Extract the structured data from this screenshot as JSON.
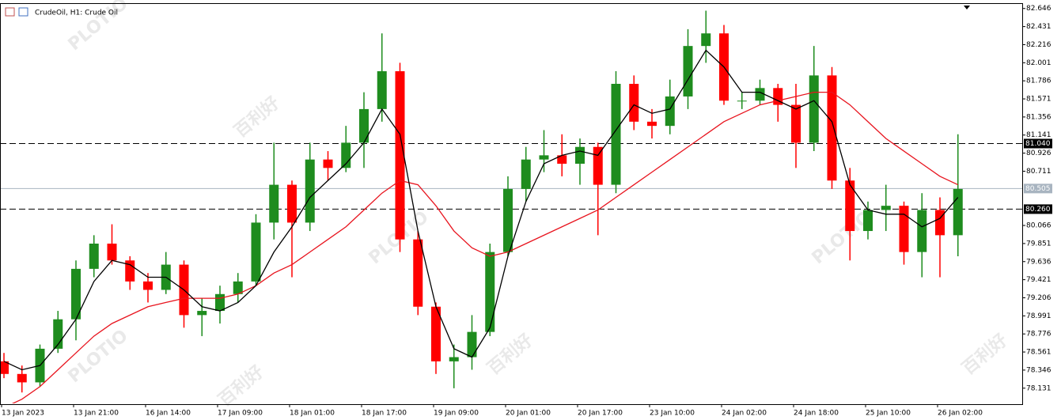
{
  "chart_data": {
    "type": "candlestick",
    "title": "CrudeOil, H1: Crude Oil",
    "watermark": {
      "brand": "PLOTIO",
      "local": "百利好"
    },
    "categories": [
      "13 Jan 2023",
      null,
      null,
      null,
      "13 Jan 21:00",
      null,
      null,
      null,
      "16 Jan 14:00",
      null,
      null,
      null,
      "17 Jan 09:00",
      null,
      null,
      null,
      "18 Jan 01:00",
      null,
      null,
      null,
      "18 Jan 17:00",
      null,
      null,
      null,
      "19 Jan 09:00",
      null,
      null,
      null,
      "20 Jan 01:00",
      null,
      null,
      null,
      "20 Jan 17:00",
      null,
      null,
      null,
      "23 Jan 10:00",
      null,
      null,
      null,
      "24 Jan 02:00",
      null,
      null,
      null,
      "24 Jan 18:00",
      null,
      null,
      null,
      "25 Jan 10:00",
      null,
      null,
      null,
      "26 Jan 02:00",
      null
    ],
    "open": [
      78.45,
      78.3,
      78.2,
      78.6,
      78.95,
      79.55,
      79.85,
      79.65,
      79.4,
      79.3,
      79.6,
      79.0,
      79.05,
      79.25,
      79.4,
      80.1,
      80.55,
      80.1,
      80.85,
      80.75,
      81.05,
      81.45,
      81.9,
      79.9,
      79.1,
      78.45,
      78.5,
      78.8,
      79.75,
      80.5,
      80.85,
      80.9,
      80.8,
      81.0,
      80.55,
      81.75,
      81.3,
      81.25,
      81.6,
      82.2,
      82.35,
      81.55,
      81.55,
      81.7,
      81.5,
      81.05,
      81.85,
      80.6,
      80.0,
      80.25,
      80.3,
      79.75,
      80.25,
      79.95
    ],
    "high": [
      78.55,
      78.4,
      78.65,
      79.05,
      79.65,
      79.95,
      80.08,
      79.7,
      79.5,
      79.75,
      79.65,
      79.2,
      79.35,
      79.5,
      80.2,
      81.05,
      80.6,
      81.05,
      80.95,
      81.25,
      81.65,
      82.35,
      82.0,
      80.0,
      79.15,
      78.65,
      79.0,
      79.85,
      80.65,
      81.0,
      81.2,
      81.15,
      81.1,
      81.05,
      81.9,
      81.85,
      81.45,
      81.8,
      82.4,
      82.62,
      82.45,
      81.65,
      81.8,
      81.75,
      81.75,
      82.2,
      81.95,
      80.75,
      80.35,
      80.55,
      80.35,
      80.45,
      80.4,
      81.15
    ],
    "low": [
      78.25,
      78.08,
      78.15,
      78.55,
      78.7,
      79.45,
      79.6,
      79.3,
      79.15,
      79.25,
      78.85,
      78.75,
      78.9,
      79.15,
      79.35,
      79.9,
      79.45,
      80.0,
      80.6,
      80.7,
      80.75,
      81.3,
      79.75,
      79.0,
      78.3,
      78.13,
      78.35,
      78.75,
      79.7,
      80.35,
      80.7,
      80.65,
      80.55,
      79.95,
      80.45,
      81.2,
      81.1,
      81.15,
      81.45,
      82.0,
      81.5,
      81.45,
      81.5,
      81.3,
      80.75,
      80.95,
      80.5,
      79.65,
      79.9,
      80.0,
      79.6,
      79.45,
      79.45,
      79.7
    ],
    "close": [
      78.3,
      78.2,
      78.6,
      78.95,
      79.55,
      79.85,
      79.65,
      79.4,
      79.3,
      79.6,
      79.0,
      79.05,
      79.25,
      79.4,
      80.1,
      80.55,
      80.1,
      80.85,
      80.75,
      81.05,
      81.45,
      81.9,
      79.9,
      79.1,
      78.45,
      78.5,
      78.8,
      79.75,
      80.5,
      80.85,
      80.9,
      80.8,
      81.0,
      80.55,
      81.75,
      81.3,
      81.25,
      81.6,
      82.2,
      82.35,
      81.55,
      81.55,
      81.7,
      81.5,
      81.05,
      81.85,
      80.6,
      80.0,
      80.25,
      80.3,
      79.75,
      80.25,
      79.95,
      80.5
    ],
    "up_color": "#1e8c1e",
    "down_color": "#ff0000",
    "ma_fast": {
      "color": "#000000",
      "values": [
        78.45,
        78.35,
        78.4,
        78.65,
        78.95,
        79.4,
        79.65,
        79.6,
        79.45,
        79.45,
        79.3,
        79.1,
        79.05,
        79.15,
        79.35,
        79.75,
        80.05,
        80.4,
        80.6,
        80.8,
        81.05,
        81.45,
        81.15,
        80.0,
        79.1,
        78.6,
        78.5,
        78.85,
        79.7,
        80.35,
        80.8,
        80.9,
        80.95,
        80.9,
        81.2,
        81.5,
        81.4,
        81.45,
        81.8,
        82.15,
        81.95,
        81.65,
        81.65,
        81.55,
        81.45,
        81.55,
        81.3,
        80.55,
        80.25,
        80.2,
        80.2,
        80.05,
        80.15,
        80.4
      ]
    },
    "ma_slow": {
      "color": "#e8141e",
      "values": [
        77.9,
        78.0,
        78.15,
        78.35,
        78.55,
        78.75,
        78.9,
        79.0,
        79.1,
        79.15,
        79.2,
        79.2,
        79.2,
        79.25,
        79.35,
        79.5,
        79.6,
        79.75,
        79.9,
        80.05,
        80.25,
        80.45,
        80.6,
        80.55,
        80.3,
        80.0,
        79.8,
        79.7,
        79.75,
        79.85,
        79.95,
        80.05,
        80.15,
        80.25,
        80.4,
        80.55,
        80.7,
        80.85,
        81.0,
        81.15,
        81.3,
        81.4,
        81.5,
        81.55,
        81.6,
        81.65,
        81.65,
        81.5,
        81.3,
        81.1,
        80.95,
        80.8,
        80.65,
        80.55
      ]
    },
    "hlines": [
      {
        "value": 81.04,
        "label": "81.040",
        "style": "dashed",
        "color": "#000000"
      },
      {
        "value": 80.505,
        "label": "80.505",
        "style": "solid",
        "color": "#a8b4c0"
      },
      {
        "value": 80.26,
        "label": "80.260",
        "style": "dashed",
        "color": "#000000"
      }
    ],
    "ylim": [
      77.95,
      82.7
    ],
    "yticks": [
      82.646,
      82.431,
      82.216,
      82.001,
      81.786,
      81.571,
      81.356,
      81.141,
      80.926,
      80.711,
      80.066,
      79.851,
      79.636,
      79.421,
      79.206,
      78.991,
      78.776,
      78.561,
      78.346,
      78.131
    ]
  }
}
